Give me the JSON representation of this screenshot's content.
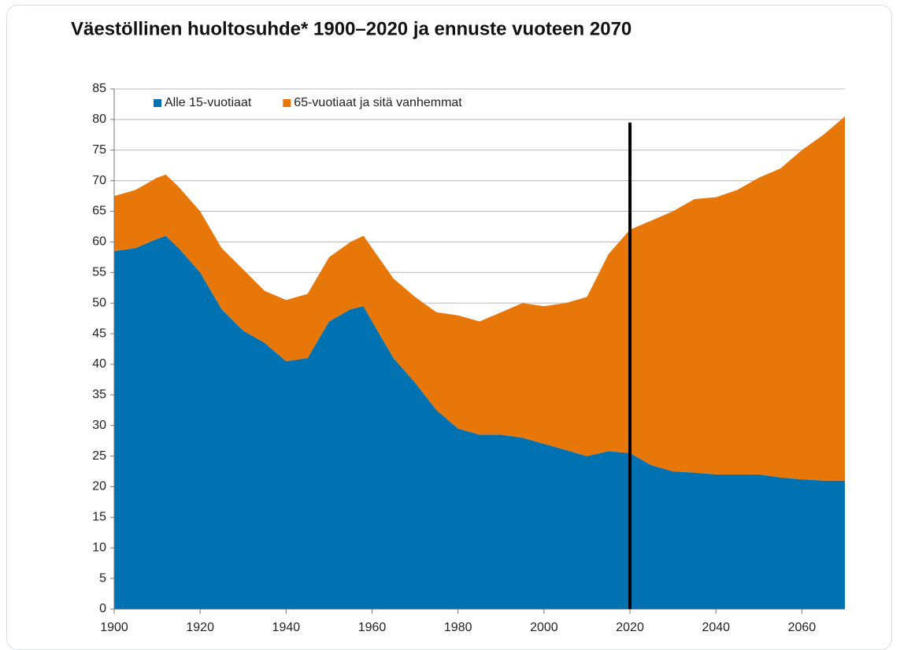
{
  "chart_data": {
    "type": "stacked_area",
    "title": "Väestöllinen huoltosuhde* 1900–2020 ja ennuste vuoteen 2070",
    "x": [
      1900,
      1905,
      1910,
      1912,
      1915,
      1920,
      1925,
      1930,
      1935,
      1940,
      1945,
      1950,
      1955,
      1958,
      1960,
      1965,
      1970,
      1975,
      1980,
      1985,
      1990,
      1995,
      2000,
      2005,
      2010,
      2015,
      2020,
      2025,
      2030,
      2035,
      2040,
      2045,
      2050,
      2055,
      2060,
      2065,
      2070
    ],
    "series": [
      {
        "name": "Alle 15-vuotiaat",
        "color": "#0072b2",
        "values": [
          58.5,
          59,
          60.5,
          61,
          59,
          55,
          49,
          45.5,
          43.5,
          40.5,
          41,
          47,
          49,
          49.5,
          47,
          41,
          37,
          32.5,
          29.5,
          28.5,
          28.5,
          28,
          27,
          26,
          25,
          25.8,
          25.5,
          23.5,
          22.5,
          22.3,
          22,
          22,
          22,
          21.5,
          21.2,
          21,
          21
        ]
      },
      {
        "name": "65-vuotiaat ja sitä vanhemmat",
        "color": "#e8770a",
        "values": [
          9,
          9.5,
          10,
          10,
          10,
          10,
          10,
          10,
          8.5,
          10,
          10.5,
          10.5,
          11,
          11.5,
          12,
          13,
          14,
          16,
          18.5,
          18.5,
          20,
          22,
          22.5,
          24,
          26,
          32.2,
          36.5,
          40,
          42.5,
          44.7,
          45.3,
          46.5,
          48.5,
          50.5,
          53.8,
          56.5,
          59.5
        ]
      }
    ],
    "xlim": [
      1900,
      2070
    ],
    "xticks": [
      1900,
      1920,
      1940,
      1960,
      1980,
      2000,
      2020,
      2040,
      2060
    ],
    "ylim": [
      0,
      85
    ],
    "yticks": [
      0,
      5,
      10,
      15,
      20,
      25,
      30,
      35,
      40,
      45,
      50,
      55,
      60,
      65,
      70,
      75,
      80,
      85
    ],
    "grid": true,
    "legend": "top-left",
    "reference_line": {
      "x": 2020,
      "y_end": 79.5,
      "color": "#000000"
    }
  }
}
